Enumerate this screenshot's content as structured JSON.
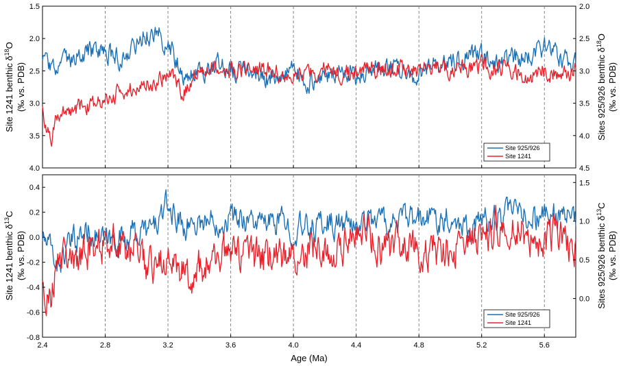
{
  "colors": {
    "site_925_926": "#1a6fb5",
    "site_1241": "#e8202a"
  },
  "x_axis": {
    "label": "Age (Ma)",
    "range": [
      2.4,
      5.8
    ],
    "ticks": [
      "2.4",
      "2.8",
      "3.2",
      "3.6",
      "4.0",
      "4.4",
      "4.8",
      "5.2",
      "5.6"
    ],
    "dashed_gridlines_at": [
      2.8,
      3.2,
      3.6,
      4.0,
      4.4,
      4.8,
      5.2,
      5.6
    ]
  },
  "chart_data": [
    {
      "type": "line",
      "panel": "top",
      "left_axis": {
        "label_main": "Site 1241 benthic δ",
        "label_sup": "18",
        "label_end": "O",
        "label_units": "(‰ vs. PDB)",
        "range": [
          1.5,
          4.0
        ],
        "reversed": true,
        "ticks": [
          "1.5",
          "2.0",
          "2.5",
          "3.0",
          "3.5",
          "4.0"
        ]
      },
      "right_axis": {
        "label_main": "Sites 925/926 benthic δ",
        "label_sup": "18",
        "label_end": "O",
        "label_units": "(‰ vs. PDB)",
        "range": [
          2.0,
          4.5
        ],
        "reversed": true,
        "ticks": [
          "2.0",
          "2.5",
          "3.0",
          "3.5",
          "4.0",
          "4.5"
        ]
      },
      "legend": {
        "position": "bottom-right",
        "entries": [
          "Site 925/926",
          "Site 1241"
        ]
      },
      "series": [
        {
          "name": "Site 925/926",
          "axis": "right",
          "x": [
            2.4,
            2.5,
            2.6,
            2.7,
            2.8,
            2.9,
            3.0,
            3.05,
            3.1,
            3.15,
            3.2,
            3.25,
            3.3,
            3.4,
            3.5,
            3.6,
            3.7,
            3.8,
            3.9,
            4.0,
            4.1,
            4.2,
            4.3,
            4.4,
            4.5,
            4.6,
            4.7,
            4.8,
            4.9,
            5.0,
            5.1,
            5.2,
            5.3,
            5.4,
            5.5,
            5.6,
            5.7,
            5.8
          ],
          "y": [
            2.9,
            3.0,
            2.8,
            2.7,
            2.7,
            2.8,
            2.6,
            2.4,
            2.5,
            2.45,
            2.6,
            2.8,
            3.1,
            3.0,
            2.9,
            2.95,
            3.0,
            3.1,
            3.05,
            3.0,
            3.15,
            3.1,
            2.95,
            3.05,
            3.0,
            2.9,
            3.05,
            3.1,
            2.85,
            2.9,
            2.8,
            2.75,
            2.9,
            2.8,
            2.8,
            2.6,
            2.8,
            2.9
          ],
          "amplitude": 0.18
        },
        {
          "name": "Site 1241",
          "axis": "left",
          "x": [
            2.4,
            2.45,
            2.5,
            2.6,
            2.7,
            2.8,
            2.9,
            3.0,
            3.1,
            3.2,
            3.25,
            3.3,
            3.4,
            3.5,
            3.6,
            3.7,
            3.8,
            3.9,
            4.0,
            4.1,
            4.2,
            4.3,
            4.4,
            4.5,
            4.6,
            4.7,
            4.8,
            4.9,
            5.0,
            5.1,
            5.2,
            5.3,
            5.4,
            5.5,
            5.6,
            5.7,
            5.8
          ],
          "y": [
            3.1,
            3.6,
            3.2,
            3.1,
            3.05,
            2.9,
            2.8,
            2.75,
            2.65,
            2.55,
            2.6,
            2.85,
            2.5,
            2.45,
            2.5,
            2.5,
            2.45,
            2.55,
            2.5,
            2.5,
            2.45,
            2.5,
            2.5,
            2.45,
            2.5,
            2.45,
            2.5,
            2.45,
            2.5,
            2.45,
            2.4,
            2.5,
            2.45,
            2.6,
            2.5,
            2.55,
            2.5
          ],
          "amplitude": 0.16
        }
      ]
    },
    {
      "type": "line",
      "panel": "bottom",
      "left_axis": {
        "label_main": "Site 1241 benthic δ",
        "label_sup": "13",
        "label_end": "C",
        "label_units": "(‰ vs. PDB)",
        "range": [
          -0.8,
          0.5
        ],
        "reversed": false,
        "ticks": [
          "-0.8",
          "-0.6",
          "-0.4",
          "-0.2",
          "0.0",
          "0.2",
          "0.4"
        ]
      },
      "right_axis": {
        "label_main": "Sites 925/926 benthic δ",
        "label_sup": "13",
        "label_end": "C",
        "label_units": "(‰ vs. PDB)",
        "range": [
          -0.5,
          1.6
        ],
        "reversed": false,
        "ticks": [
          "0.0",
          "0.5",
          "1.0",
          "1.5"
        ]
      },
      "legend": {
        "position": "bottom-right",
        "entries": [
          "Site 925/926",
          "Site 1241"
        ]
      },
      "series": [
        {
          "name": "Site 925/926",
          "axis": "right",
          "x": [
            2.4,
            2.5,
            2.6,
            2.7,
            2.8,
            2.9,
            3.0,
            3.1,
            3.2,
            3.25,
            3.3,
            3.4,
            3.5,
            3.6,
            3.7,
            3.8,
            3.9,
            4.0,
            4.1,
            4.2,
            4.3,
            4.4,
            4.5,
            4.6,
            4.7,
            4.8,
            4.9,
            5.0,
            5.1,
            5.2,
            5.3,
            5.4,
            5.5,
            5.6,
            5.7,
            5.8
          ],
          "y": [
            0.8,
            0.45,
            0.75,
            0.9,
            0.7,
            0.8,
            0.85,
            0.9,
            1.2,
            1.05,
            0.95,
            1.0,
            1.0,
            1.05,
            1.05,
            0.95,
            1.0,
            0.9,
            0.9,
            1.0,
            0.95,
            0.95,
            1.05,
            1.0,
            1.0,
            1.0,
            1.05,
            1.05,
            0.95,
            1.0,
            1.05,
            1.1,
            1.05,
            1.05,
            1.1,
            1.0
          ],
          "amplitude": 0.2
        },
        {
          "name": "Site 1241",
          "axis": "left",
          "x": [
            2.4,
            2.45,
            2.5,
            2.6,
            2.7,
            2.8,
            2.9,
            3.0,
            3.1,
            3.2,
            3.3,
            3.4,
            3.5,
            3.6,
            3.7,
            3.8,
            3.9,
            4.0,
            4.1,
            4.2,
            4.3,
            4.4,
            4.5,
            4.6,
            4.7,
            4.8,
            4.9,
            5.0,
            5.1,
            5.2,
            5.3,
            5.4,
            5.5,
            5.6,
            5.7,
            5.8
          ],
          "y": [
            -0.3,
            -0.5,
            -0.15,
            -0.15,
            -0.1,
            -0.05,
            -0.05,
            -0.1,
            -0.25,
            -0.15,
            -0.3,
            -0.25,
            -0.15,
            -0.1,
            -0.15,
            -0.2,
            -0.15,
            -0.15,
            -0.1,
            -0.05,
            -0.1,
            0.05,
            0.0,
            -0.1,
            -0.05,
            -0.15,
            -0.1,
            -0.1,
            -0.05,
            -0.05,
            0.1,
            0.15,
            0.0,
            -0.05,
            0.05,
            -0.1
          ],
          "amplitude": 0.17
        }
      ]
    }
  ]
}
